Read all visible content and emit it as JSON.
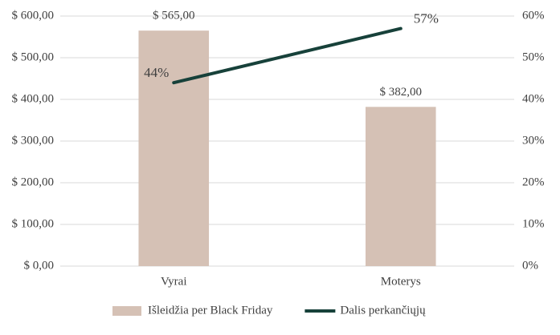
{
  "chart_data": {
    "type": "bar",
    "categories": [
      "Vyrai",
      "Moterys"
    ],
    "series": [
      {
        "name": "Išleidžia per Black Friday",
        "type": "bar",
        "color": "#d5c1b5",
        "values": [
          565,
          382
        ],
        "value_labels": [
          "$ 565,00",
          "$ 382,00"
        ]
      },
      {
        "name": "Dalis perkančiųjų",
        "type": "line",
        "axis": "y2",
        "color": "#17413a",
        "values": [
          44,
          57
        ],
        "value_labels": [
          "44%",
          "57%"
        ]
      }
    ],
    "ylim": [
      0,
      600
    ],
    "yticks": [
      {
        "value": 0,
        "label": "$ 0,00"
      },
      {
        "value": 100,
        "label": "$ 100,00"
      },
      {
        "value": 200,
        "label": "$ 200,00"
      },
      {
        "value": 300,
        "label": "$ 300,00"
      },
      {
        "value": 400,
        "label": "$ 400,00"
      },
      {
        "value": 500,
        "label": "$ 500,00"
      },
      {
        "value": 600,
        "label": "$ 600,00"
      }
    ],
    "y2lim": [
      0,
      60
    ],
    "y2ticks": [
      {
        "value": 0,
        "label": "0%"
      },
      {
        "value": 10,
        "label": "10%"
      },
      {
        "value": 20,
        "label": "20%"
      },
      {
        "value": 30,
        "label": "30%"
      },
      {
        "value": 40,
        "label": "40%"
      },
      {
        "value": 50,
        "label": "50%"
      },
      {
        "value": 60,
        "label": "60%"
      }
    ],
    "grid": true,
    "legend": "bottom"
  }
}
